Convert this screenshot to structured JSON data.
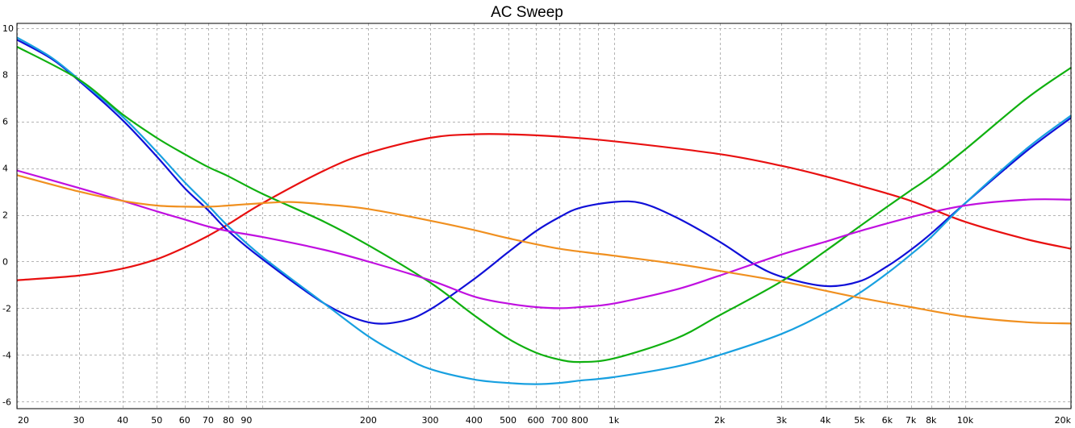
{
  "chart_data": {
    "type": "line",
    "title": "AC Sweep",
    "xlabel": "",
    "ylabel": "",
    "xscale": "log",
    "xlim": [
      20,
      20000
    ],
    "ylim": [
      -6.3,
      10.2
    ],
    "grid": true,
    "legend": "none",
    "x_ticks": [
      {
        "value": 20,
        "label": "20"
      },
      {
        "value": 30,
        "label": "30"
      },
      {
        "value": 40,
        "label": "40"
      },
      {
        "value": 50,
        "label": "50"
      },
      {
        "value": 60,
        "label": "60"
      },
      {
        "value": 70,
        "label": "70"
      },
      {
        "value": 80,
        "label": "80"
      },
      {
        "value": 90,
        "label": "90"
      },
      {
        "value": 200,
        "label": "200"
      },
      {
        "value": 300,
        "label": "300"
      },
      {
        "value": 400,
        "label": "400"
      },
      {
        "value": 500,
        "label": "500"
      },
      {
        "value": 600,
        "label": "600"
      },
      {
        "value": 700,
        "label": "700"
      },
      {
        "value": 800,
        "label": "800"
      },
      {
        "value": 1000,
        "label": "1k"
      },
      {
        "value": 2000,
        "label": "2k"
      },
      {
        "value": 3000,
        "label": "3k"
      },
      {
        "value": 4000,
        "label": "4k"
      },
      {
        "value": 5000,
        "label": "5k"
      },
      {
        "value": 6000,
        "label": "6k"
      },
      {
        "value": 7000,
        "label": "7k"
      },
      {
        "value": 8000,
        "label": "8k"
      },
      {
        "value": 10000,
        "label": "10k"
      },
      {
        "value": 20000,
        "label": "20k"
      }
    ],
    "x_grid": [
      20,
      30,
      40,
      50,
      60,
      70,
      80,
      90,
      100,
      200,
      300,
      400,
      500,
      600,
      700,
      800,
      900,
      1000,
      2000,
      3000,
      4000,
      5000,
      6000,
      7000,
      8000,
      9000,
      10000,
      20000
    ],
    "y_ticks": [
      {
        "value": 10,
        "label": "10"
      },
      {
        "value": 8,
        "label": "8"
      },
      {
        "value": 6,
        "label": "6"
      },
      {
        "value": 4,
        "label": "4"
      },
      {
        "value": 2,
        "label": "2"
      },
      {
        "value": 0,
        "label": "0"
      },
      {
        "value": -2,
        "label": "-2"
      },
      {
        "value": -4,
        "label": "-4"
      },
      {
        "value": -6,
        "label": "-6"
      }
    ],
    "series": [
      {
        "color": "#e81010",
        "points": [
          [
            20,
            -0.8
          ],
          [
            30,
            -0.6
          ],
          [
            40,
            -0.3
          ],
          [
            50,
            0.1
          ],
          [
            60,
            0.6
          ],
          [
            70,
            1.1
          ],
          [
            80,
            1.6
          ],
          [
            100,
            2.5
          ],
          [
            150,
            3.9
          ],
          [
            200,
            4.65
          ],
          [
            300,
            5.3
          ],
          [
            400,
            5.45
          ],
          [
            500,
            5.45
          ],
          [
            700,
            5.35
          ],
          [
            1000,
            5.15
          ],
          [
            2000,
            4.6
          ],
          [
            3000,
            4.1
          ],
          [
            4000,
            3.65
          ],
          [
            5000,
            3.25
          ],
          [
            7000,
            2.6
          ],
          [
            10000,
            1.7
          ],
          [
            15000,
            0.95
          ],
          [
            20000,
            0.55
          ]
        ]
      },
      {
        "color": "#1010d8",
        "points": [
          [
            20,
            9.5
          ],
          [
            25,
            8.7
          ],
          [
            30,
            7.75
          ],
          [
            40,
            6.05
          ],
          [
            50,
            4.5
          ],
          [
            60,
            3.15
          ],
          [
            70,
            2.2
          ],
          [
            80,
            1.3
          ],
          [
            100,
            0.1
          ],
          [
            150,
            -1.8
          ],
          [
            200,
            -2.6
          ],
          [
            250,
            -2.55
          ],
          [
            300,
            -2.05
          ],
          [
            400,
            -0.75
          ],
          [
            500,
            0.4
          ],
          [
            600,
            1.3
          ],
          [
            700,
            1.9
          ],
          [
            800,
            2.3
          ],
          [
            1000,
            2.55
          ],
          [
            1200,
            2.5
          ],
          [
            1500,
            1.9
          ],
          [
            2000,
            0.85
          ],
          [
            2500,
            -0.1
          ],
          [
            3000,
            -0.65
          ],
          [
            4000,
            -1.05
          ],
          [
            5000,
            -0.85
          ],
          [
            6000,
            -0.2
          ],
          [
            7000,
            0.5
          ],
          [
            8000,
            1.2
          ],
          [
            10000,
            2.5
          ],
          [
            15000,
            4.75
          ],
          [
            20000,
            6.15
          ]
        ]
      },
      {
        "color": "#18a0e0",
        "points": [
          [
            20,
            9.6
          ],
          [
            25,
            8.75
          ],
          [
            30,
            7.8
          ],
          [
            40,
            6.2
          ],
          [
            50,
            4.7
          ],
          [
            60,
            3.4
          ],
          [
            70,
            2.4
          ],
          [
            80,
            1.5
          ],
          [
            100,
            0.2
          ],
          [
            150,
            -1.8
          ],
          [
            200,
            -3.2
          ],
          [
            250,
            -4.05
          ],
          [
            300,
            -4.6
          ],
          [
            400,
            -5.05
          ],
          [
            500,
            -5.2
          ],
          [
            600,
            -5.25
          ],
          [
            700,
            -5.2
          ],
          [
            800,
            -5.1
          ],
          [
            1000,
            -4.95
          ],
          [
            1500,
            -4.5
          ],
          [
            2000,
            -4.0
          ],
          [
            3000,
            -3.1
          ],
          [
            4000,
            -2.2
          ],
          [
            5000,
            -1.35
          ],
          [
            6000,
            -0.5
          ],
          [
            7000,
            0.3
          ],
          [
            8000,
            1.05
          ],
          [
            10000,
            2.5
          ],
          [
            15000,
            4.85
          ],
          [
            20000,
            6.25
          ]
        ]
      },
      {
        "color": "#10b010",
        "points": [
          [
            20,
            9.2
          ],
          [
            30,
            7.8
          ],
          [
            40,
            6.3
          ],
          [
            50,
            5.3
          ],
          [
            60,
            4.6
          ],
          [
            70,
            4.05
          ],
          [
            80,
            3.65
          ],
          [
            100,
            2.9
          ],
          [
            150,
            1.7
          ],
          [
            200,
            0.7
          ],
          [
            300,
            -0.9
          ],
          [
            400,
            -2.3
          ],
          [
            500,
            -3.3
          ],
          [
            600,
            -3.9
          ],
          [
            700,
            -4.2
          ],
          [
            800,
            -4.3
          ],
          [
            1000,
            -4.15
          ],
          [
            1500,
            -3.3
          ],
          [
            2000,
            -2.3
          ],
          [
            3000,
            -0.85
          ],
          [
            4000,
            0.45
          ],
          [
            5000,
            1.5
          ],
          [
            6000,
            2.35
          ],
          [
            7000,
            3.05
          ],
          [
            8000,
            3.65
          ],
          [
            10000,
            4.8
          ],
          [
            15000,
            7.0
          ],
          [
            20000,
            8.3
          ]
        ]
      },
      {
        "color": "#c010e0",
        "points": [
          [
            20,
            3.9
          ],
          [
            30,
            3.15
          ],
          [
            40,
            2.6
          ],
          [
            50,
            2.15
          ],
          [
            60,
            1.8
          ],
          [
            70,
            1.5
          ],
          [
            80,
            1.3
          ],
          [
            100,
            1.05
          ],
          [
            150,
            0.5
          ],
          [
            200,
            0.0
          ],
          [
            300,
            -0.8
          ],
          [
            400,
            -1.5
          ],
          [
            500,
            -1.8
          ],
          [
            600,
            -1.95
          ],
          [
            700,
            -2.0
          ],
          [
            800,
            -1.95
          ],
          [
            1000,
            -1.8
          ],
          [
            1500,
            -1.2
          ],
          [
            2000,
            -0.6
          ],
          [
            3000,
            0.3
          ],
          [
            4000,
            0.85
          ],
          [
            5000,
            1.3
          ],
          [
            7000,
            1.9
          ],
          [
            10000,
            2.4
          ],
          [
            15000,
            2.65
          ],
          [
            20000,
            2.65
          ]
        ]
      },
      {
        "color": "#f09020",
        "points": [
          [
            20,
            3.7
          ],
          [
            30,
            3.0
          ],
          [
            40,
            2.6
          ],
          [
            50,
            2.4
          ],
          [
            60,
            2.35
          ],
          [
            70,
            2.35
          ],
          [
            80,
            2.4
          ],
          [
            100,
            2.5
          ],
          [
            120,
            2.55
          ],
          [
            150,
            2.45
          ],
          [
            200,
            2.25
          ],
          [
            300,
            1.75
          ],
          [
            400,
            1.35
          ],
          [
            500,
            1.0
          ],
          [
            700,
            0.55
          ],
          [
            1000,
            0.25
          ],
          [
            1500,
            -0.1
          ],
          [
            2000,
            -0.4
          ],
          [
            3000,
            -0.85
          ],
          [
            4000,
            -1.25
          ],
          [
            5000,
            -1.55
          ],
          [
            7000,
            -1.95
          ],
          [
            10000,
            -2.35
          ],
          [
            15000,
            -2.6
          ],
          [
            20000,
            -2.65
          ]
        ]
      }
    ]
  }
}
